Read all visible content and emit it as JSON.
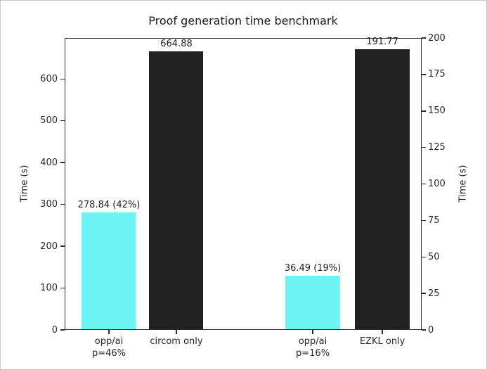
{
  "colors": {
    "cyan_bar": "#6ef4f4",
    "black_bar": "#212121",
    "spine": "#2e2e2e",
    "text": "#1c1c1c",
    "background": "#ffffff"
  },
  "chart_data": {
    "type": "bar",
    "title": "Proof generation time benchmark",
    "grid": false,
    "legend": "none",
    "left_axis": {
      "label": "Time (s)",
      "ticks": [
        0,
        100,
        200,
        300,
        400,
        500,
        600
      ],
      "ylim": [
        0,
        698
      ]
    },
    "right_axis": {
      "label": "Time (s)",
      "ticks": [
        0,
        25,
        50,
        75,
        100,
        125,
        150,
        175,
        200
      ],
      "ylim": [
        0,
        200
      ]
    },
    "bars": [
      {
        "category": "opp/ai\np=46%",
        "value": 278.84,
        "value_label": "278.84 (42%)",
        "axis": "left",
        "color": "cyan",
        "x_frac": 0.124
      },
      {
        "category": "circom only",
        "value": 664.88,
        "value_label": "664.88",
        "axis": "left",
        "color": "black",
        "x_frac": 0.313
      },
      {
        "category": "opp/ai\np=16%",
        "value": 36.49,
        "value_label": "36.49 (19%)",
        "axis": "right",
        "color": "cyan",
        "x_frac": 0.695
      },
      {
        "category": "EZKL only",
        "value": 191.77,
        "value_label": "191.77",
        "axis": "right",
        "color": "black",
        "x_frac": 0.89
      }
    ],
    "bar_width_frac": 0.1535
  }
}
